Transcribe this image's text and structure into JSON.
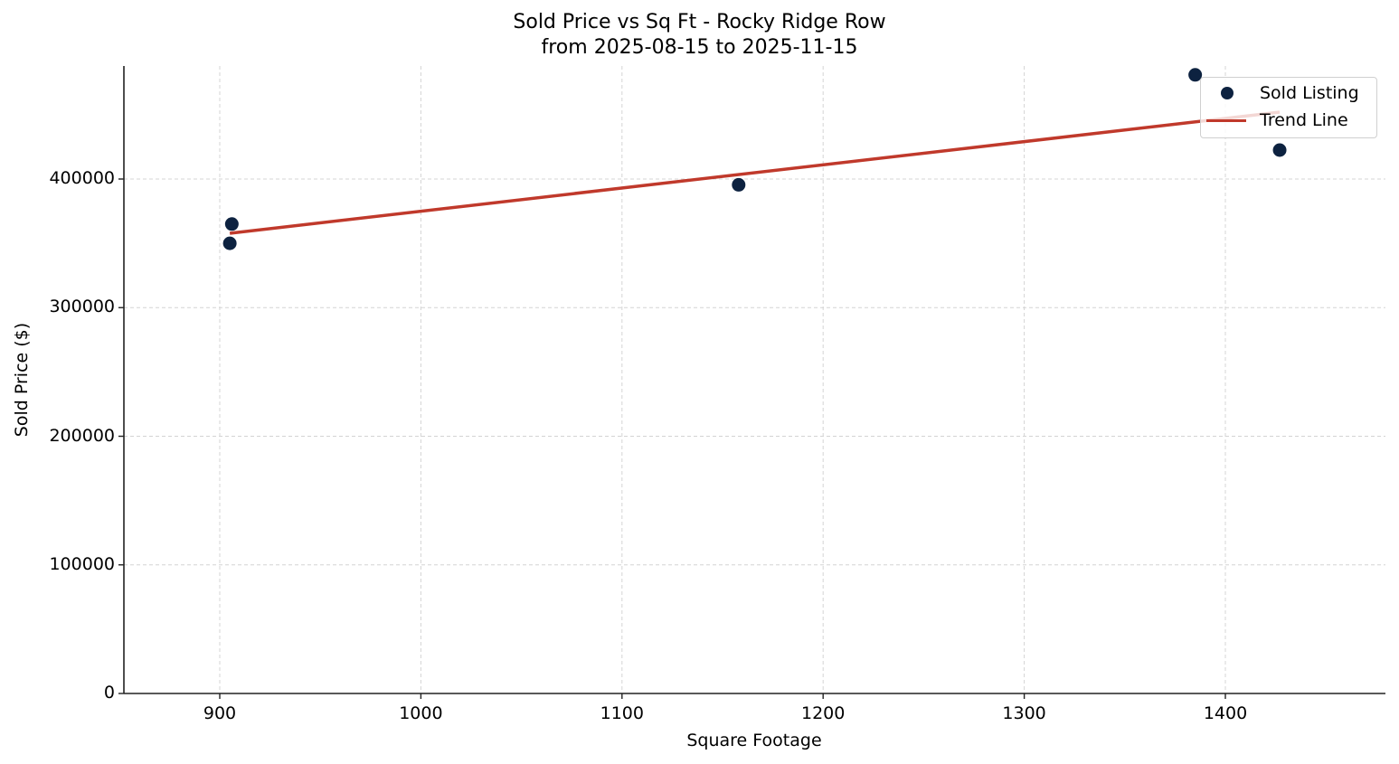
{
  "chart_data": {
    "type": "scatter",
    "title": "Sold Price vs Sq Ft - Rocky Ridge Row",
    "subtitle": "from 2025-08-15 to 2025-11-15",
    "xlabel": "Square Footage",
    "ylabel": "Sold Price ($)",
    "xlim": [
      852,
      1480
    ],
    "ylim": [
      0,
      488000
    ],
    "x_ticks": [
      900,
      1000,
      1100,
      1200,
      1300,
      1400
    ],
    "y_ticks": [
      0,
      100000,
      200000,
      300000,
      400000
    ],
    "grid": true,
    "legend_position": "upper right",
    "series": [
      {
        "name": "Sold Listing",
        "kind": "scatter",
        "color": "#0d2240",
        "points": [
          {
            "x": 906,
            "y": 365000
          },
          {
            "x": 905,
            "y": 350000
          },
          {
            "x": 1158,
            "y": 395500
          },
          {
            "x": 1385,
            "y": 481000
          },
          {
            "x": 1427,
            "y": 422500
          }
        ]
      },
      {
        "name": "Trend Line",
        "kind": "line",
        "color": "#c0392b",
        "points": [
          {
            "x": 905,
            "y": 357800
          },
          {
            "x": 1427,
            "y": 452000
          }
        ]
      }
    ]
  },
  "labels": {
    "title": "Sold Price vs Sq Ft - Rocky Ridge Row",
    "subtitle": "from 2025-08-15 to 2025-11-15",
    "xlabel": "Square Footage",
    "ylabel": "Sold Price ($)",
    "legend": [
      "Sold Listing",
      "Trend Line"
    ],
    "x_ticks": [
      "900",
      "1000",
      "1100",
      "1200",
      "1300",
      "1400"
    ],
    "y_ticks": [
      "0",
      "100000",
      "200000",
      "300000",
      "400000"
    ]
  }
}
